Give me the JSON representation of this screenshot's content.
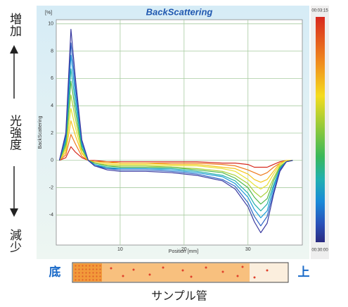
{
  "chart_data": {
    "type": "line",
    "title": "BackScattering",
    "y_unit": "[%]",
    "ylabel": "BackScattering",
    "xlabel": "Position [mm]",
    "x": [
      0.5,
      1.5,
      2.3,
      3,
      4,
      5,
      6,
      8,
      10,
      14,
      18,
      22,
      26,
      28,
      30,
      31,
      32,
      33,
      34,
      35,
      36,
      37
    ],
    "series": [
      {
        "color": "#d62a1e",
        "values": [
          0,
          0.2,
          1,
          0.6,
          0.2,
          0,
          0,
          -0.1,
          -0.1,
          -0.1,
          -0.1,
          -0.1,
          -0.2,
          -0.2,
          -0.3,
          -0.5,
          -0.5,
          -0.5,
          -0.3,
          -0.1,
          0,
          0
        ]
      },
      {
        "color": "#ee7a1e",
        "values": [
          0,
          0.4,
          1.9,
          1.2,
          0.3,
          0,
          -0.1,
          -0.1,
          -0.2,
          -0.2,
          -0.2,
          -0.2,
          -0.3,
          -0.4,
          -0.7,
          -0.9,
          -1.1,
          -0.9,
          -0.5,
          -0.2,
          0,
          0
        ]
      },
      {
        "color": "#f5c41e",
        "values": [
          0,
          0.6,
          2.9,
          1.8,
          0.5,
          0,
          -0.1,
          -0.2,
          -0.2,
          -0.2,
          -0.3,
          -0.3,
          -0.5,
          -0.6,
          -1,
          -1.4,
          -1.6,
          -1.4,
          -0.8,
          -0.2,
          0,
          0
        ]
      },
      {
        "color": "#e8e030",
        "values": [
          0,
          0.8,
          3.8,
          2.4,
          0.6,
          0,
          -0.2,
          -0.3,
          -0.3,
          -0.3,
          -0.4,
          -0.4,
          -0.6,
          -0.8,
          -1.4,
          -1.8,
          -2.1,
          -1.8,
          -1,
          -0.3,
          0,
          0
        ]
      },
      {
        "color": "#a8d038",
        "values": [
          0,
          1,
          4.8,
          3,
          0.8,
          0,
          -0.2,
          -0.4,
          -0.4,
          -0.4,
          -0.5,
          -0.6,
          -0.8,
          -1.1,
          -1.7,
          -2.3,
          -2.7,
          -2.3,
          -1.3,
          -0.4,
          -0.1,
          0
        ]
      },
      {
        "color": "#52b84a",
        "values": [
          0,
          1.2,
          5.8,
          3.6,
          0.9,
          0,
          -0.2,
          -0.4,
          -0.5,
          -0.5,
          -0.5,
          -0.7,
          -0.9,
          -1.3,
          -2,
          -2.7,
          -3.2,
          -2.8,
          -1.5,
          -0.5,
          -0.1,
          0
        ]
      },
      {
        "color": "#22b0a8",
        "values": [
          0,
          1.4,
          6.7,
          4.2,
          1.1,
          0,
          -0.3,
          -0.5,
          -0.6,
          -0.6,
          -0.6,
          -0.8,
          -1.1,
          -1.5,
          -2.4,
          -3.2,
          -3.7,
          -3.2,
          -1.8,
          -0.6,
          -0.1,
          0
        ]
      },
      {
        "color": "#1a9ad8",
        "values": [
          0,
          1.6,
          7.7,
          4.8,
          1.2,
          0,
          -0.3,
          -0.6,
          -0.6,
          -0.6,
          -0.7,
          -0.9,
          -1.2,
          -1.7,
          -2.7,
          -3.6,
          -4.2,
          -3.7,
          -2,
          -0.6,
          -0.1,
          0
        ]
      },
      {
        "color": "#2a62c4",
        "values": [
          0,
          1.8,
          8.6,
          5.4,
          1.4,
          0,
          -0.4,
          -0.6,
          -0.7,
          -0.7,
          -0.8,
          -1,
          -1.4,
          -1.9,
          -3.1,
          -4.1,
          -4.8,
          -4.1,
          -2.3,
          -0.7,
          -0.1,
          0
        ]
      },
      {
        "color": "#3a3aa0",
        "values": [
          0,
          2,
          9.6,
          6,
          1.5,
          0,
          -0.4,
          -0.7,
          -0.8,
          -0.8,
          -0.9,
          -1.1,
          -1.5,
          -2.1,
          -3.4,
          -4.5,
          -5.3,
          -4.6,
          -2.5,
          -0.8,
          -0.1,
          0
        ]
      }
    ],
    "xlim": [
      0,
      38.5
    ],
    "ylim": [
      -6.2,
      10.3
    ],
    "xticks": [
      10,
      20,
      30
    ],
    "yticks": [
      -4,
      -2,
      0,
      2,
      4,
      6,
      8,
      10
    ],
    "grid": true,
    "colorbar_labels": [
      "00:03:15",
      "00:30:00"
    ],
    "annotations": {
      "increase": "増加",
      "intensity": "光強度",
      "decrease": "減少",
      "bottom": "底",
      "top": "上",
      "tube": "サンプル管"
    }
  }
}
